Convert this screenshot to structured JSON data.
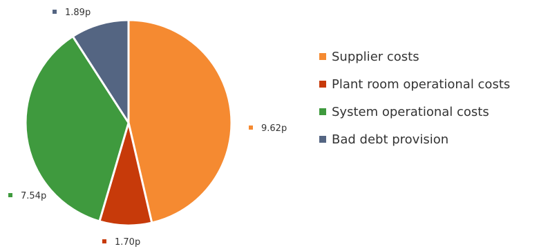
{
  "chart_data": {
    "type": "pie",
    "unit": "p",
    "slices": [
      {
        "name": "Supplier costs",
        "value": 9.62,
        "label": "9.62p",
        "color": "#F58A31"
      },
      {
        "name": "Plant room operational costs",
        "value": 1.7,
        "label": "1.70p",
        "color": "#C73A0A"
      },
      {
        "name": "System operational costs",
        "value": 7.54,
        "label": "7.54p",
        "color": "#3F9A3E"
      },
      {
        "name": "Bad debt provision",
        "value": 1.89,
        "label": "1.89p",
        "color": "#546582"
      }
    ],
    "legend_position": "right"
  }
}
